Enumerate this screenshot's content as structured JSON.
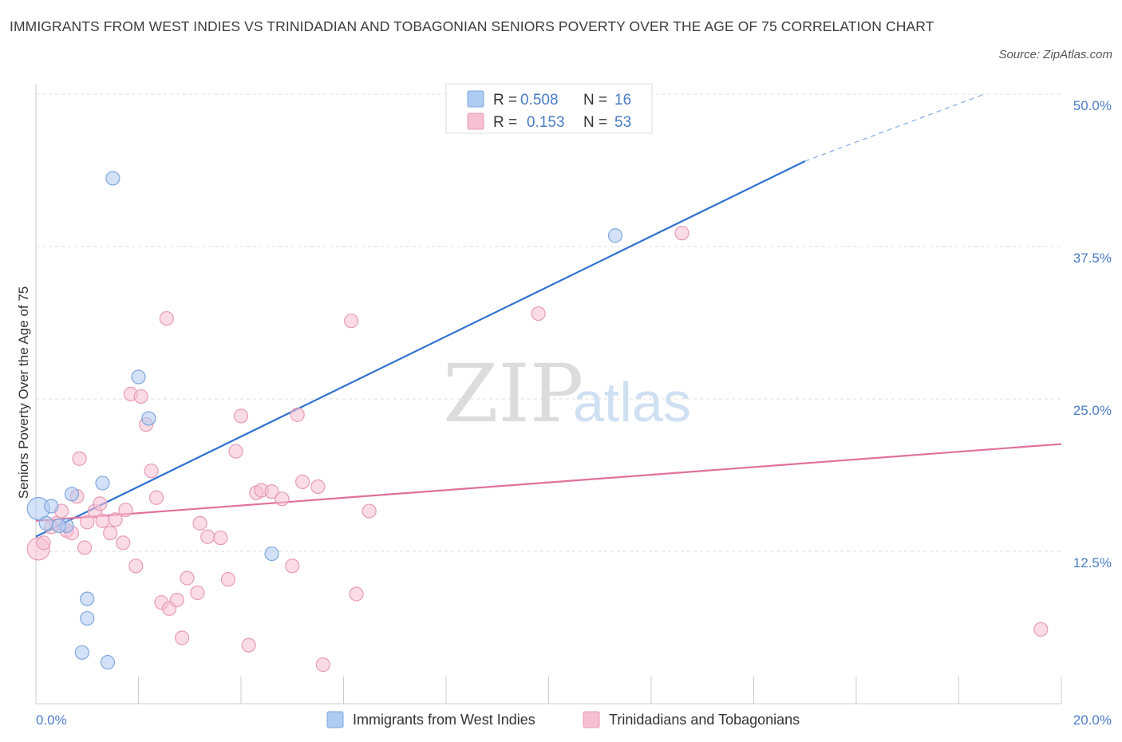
{
  "title": "IMMIGRANTS FROM WEST INDIES VS TRINIDADIAN AND TOBAGONIAN SENIORS POVERTY OVER THE AGE OF 75 CORRELATION CHART",
  "source": "Source: ZipAtlas.com",
  "watermark": {
    "zip": "ZIP",
    "atlas": "atlas"
  },
  "legend_top": [
    {
      "r_label": "R =",
      "r_value": "0.508",
      "n_label": "N =",
      "n_value": "16",
      "color": "#aecbf2"
    },
    {
      "r_label": "R =",
      "r_value": "0.153",
      "n_label": "N =",
      "n_value": "53",
      "color": "#f7bfd2"
    }
  ],
  "legend_bottom": [
    {
      "label": "Immigrants from West Indies",
      "color": "#aecbf2"
    },
    {
      "label": "Trinidadians and Tobagonians",
      "color": "#f7bfd2"
    }
  ],
  "chart_data": {
    "type": "scatter",
    "title": "IMMIGRANTS FROM WEST INDIES VS TRINIDADIAN AND TOBAGONIAN SENIORS POVERTY OVER THE AGE OF 75 CORRELATION CHART",
    "xlabel": "",
    "ylabel": "Seniors Poverty Over the Age of 75",
    "xlim": [
      0,
      20
    ],
    "ylim": [
      0,
      50
    ],
    "x_tick_labels": [
      "0.0%",
      "20.0%"
    ],
    "y_ticks": [
      12.5,
      25.0,
      37.5,
      50.0
    ],
    "y_tick_labels": [
      "12.5%",
      "25.0%",
      "37.5%",
      "50.0%"
    ],
    "grid": true,
    "legend_position": "top-center",
    "series": [
      {
        "name": "Immigrants from West Indies",
        "color": "#aecbf2",
        "line_color": "#2f72d0",
        "trend": {
          "x": [
            0,
            15
          ],
          "y": [
            13.7,
            44.5
          ],
          "dashed_to": [
            18.5,
            50
          ]
        },
        "points": [
          {
            "x": 0.05,
            "y": 16.0,
            "big": true
          },
          {
            "x": 0.2,
            "y": 14.8
          },
          {
            "x": 0.3,
            "y": 16.2
          },
          {
            "x": 0.6,
            "y": 14.6
          },
          {
            "x": 0.7,
            "y": 17.2
          },
          {
            "x": 1.0,
            "y": 7.0
          },
          {
            "x": 0.9,
            "y": 4.2
          },
          {
            "x": 1.0,
            "y": 8.6
          },
          {
            "x": 1.3,
            "y": 18.1
          },
          {
            "x": 1.4,
            "y": 3.4
          },
          {
            "x": 1.5,
            "y": 43.1
          },
          {
            "x": 2.0,
            "y": 26.8
          },
          {
            "x": 2.2,
            "y": 23.4
          },
          {
            "x": 4.6,
            "y": 12.3
          },
          {
            "x": 11.3,
            "y": 38.4
          },
          {
            "x": 0.45,
            "y": 14.6
          }
        ]
      },
      {
        "name": "Trinidadians and Tobagonians",
        "color": "#f7bfd2",
        "line_color": "#e0709c",
        "trend": {
          "x": [
            0,
            20
          ],
          "y": [
            15.0,
            21.3
          ]
        },
        "points": [
          {
            "x": 0.05,
            "y": 12.7,
            "big": true
          },
          {
            "x": 0.15,
            "y": 13.2
          },
          {
            "x": 0.4,
            "y": 14.8
          },
          {
            "x": 0.5,
            "y": 15.8
          },
          {
            "x": 0.6,
            "y": 14.2
          },
          {
            "x": 0.7,
            "y": 14.0
          },
          {
            "x": 0.8,
            "y": 17.0
          },
          {
            "x": 0.85,
            "y": 20.1
          },
          {
            "x": 0.95,
            "y": 12.8
          },
          {
            "x": 1.15,
            "y": 15.8
          },
          {
            "x": 1.25,
            "y": 16.4
          },
          {
            "x": 1.3,
            "y": 15.0
          },
          {
            "x": 1.45,
            "y": 14.0
          },
          {
            "x": 1.55,
            "y": 15.1
          },
          {
            "x": 1.7,
            "y": 13.2
          },
          {
            "x": 1.75,
            "y": 15.9
          },
          {
            "x": 1.85,
            "y": 25.4
          },
          {
            "x": 1.95,
            "y": 11.3
          },
          {
            "x": 2.05,
            "y": 25.2
          },
          {
            "x": 2.15,
            "y": 22.9
          },
          {
            "x": 2.25,
            "y": 19.1
          },
          {
            "x": 2.35,
            "y": 16.9
          },
          {
            "x": 2.45,
            "y": 8.3
          },
          {
            "x": 2.55,
            "y": 31.6
          },
          {
            "x": 2.6,
            "y": 7.8
          },
          {
            "x": 2.75,
            "y": 8.5
          },
          {
            "x": 2.85,
            "y": 5.4
          },
          {
            "x": 2.95,
            "y": 10.3
          },
          {
            "x": 3.15,
            "y": 9.1
          },
          {
            "x": 3.2,
            "y": 14.8
          },
          {
            "x": 3.35,
            "y": 13.7
          },
          {
            "x": 3.6,
            "y": 13.6
          },
          {
            "x": 3.75,
            "y": 10.2
          },
          {
            "x": 3.9,
            "y": 20.7
          },
          {
            "x": 4.0,
            "y": 23.6
          },
          {
            "x": 4.15,
            "y": 4.8
          },
          {
            "x": 4.3,
            "y": 17.3
          },
          {
            "x": 4.4,
            "y": 17.5
          },
          {
            "x": 4.6,
            "y": 17.4
          },
          {
            "x": 4.8,
            "y": 16.8
          },
          {
            "x": 5.0,
            "y": 11.3
          },
          {
            "x": 5.1,
            "y": 23.7
          },
          {
            "x": 5.2,
            "y": 18.2
          },
          {
            "x": 5.5,
            "y": 17.8
          },
          {
            "x": 5.6,
            "y": 3.2
          },
          {
            "x": 6.15,
            "y": 31.4
          },
          {
            "x": 6.25,
            "y": 9.0
          },
          {
            "x": 6.5,
            "y": 15.8
          },
          {
            "x": 9.8,
            "y": 32.0
          },
          {
            "x": 12.6,
            "y": 38.6
          },
          {
            "x": 19.6,
            "y": 6.1
          },
          {
            "x": 0.3,
            "y": 14.5
          },
          {
            "x": 1.0,
            "y": 14.9
          }
        ]
      }
    ]
  }
}
